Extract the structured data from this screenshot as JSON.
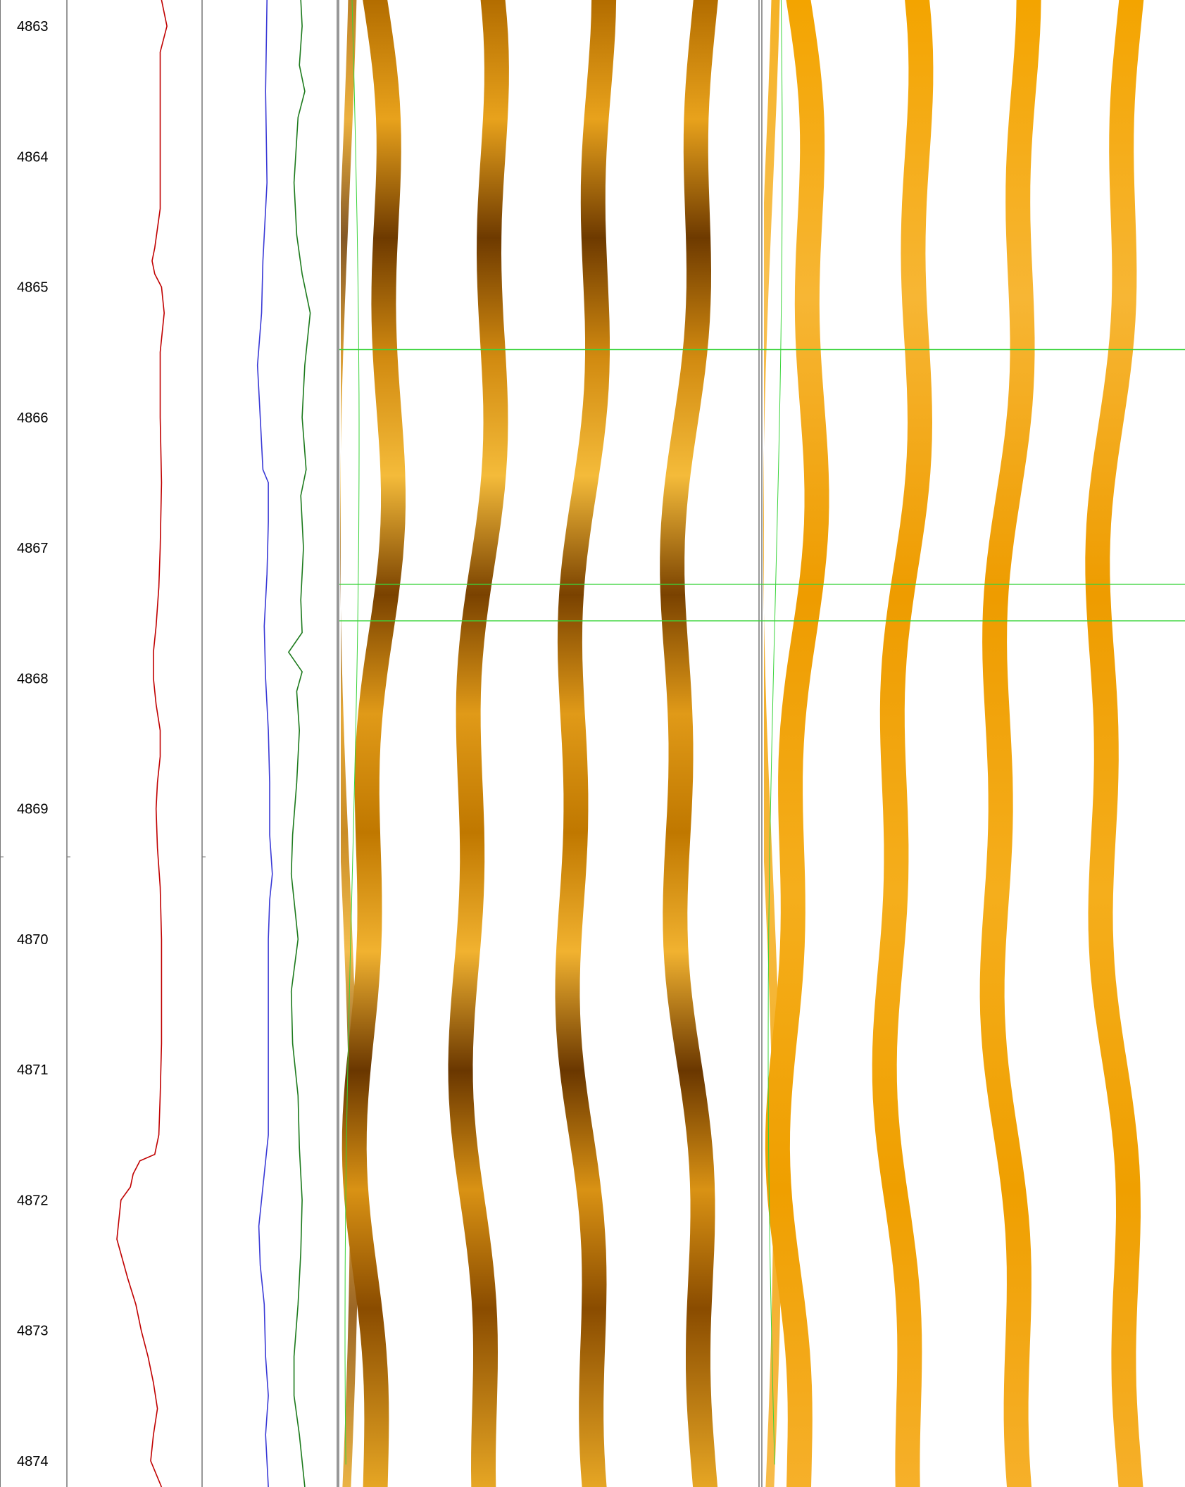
{
  "depth_track": {
    "labels": [
      "4863",
      "4864",
      "4865",
      "4866",
      "4867",
      "4868",
      "4869",
      "4870",
      "4871",
      "4872",
      "4873",
      "4874"
    ]
  },
  "colors": {
    "background": "#ffffff",
    "track_border": "#777777",
    "curve_red": "#c00000",
    "curve_blue": "#3a3ad6",
    "curve_green": "#1c7a1c",
    "marker_green": "#39d43a",
    "image_dark": "#5a2e00",
    "image_mid": "#c77d00",
    "image_light": "#f2b630",
    "image_static": "#f2a100"
  },
  "chart_data": {
    "type": "line",
    "title": "",
    "xlabel": "",
    "ylabel": "",
    "depth_range": [
      4862.8,
      4874.2
    ],
    "depth_ticks": [
      4863,
      4864,
      4865,
      4866,
      4867,
      4868,
      4869,
      4870,
      4871,
      4872,
      4873,
      4874
    ],
    "grid": false,
    "legend": "none",
    "tracks": [
      {
        "kind": "curve",
        "series": [
          {
            "color": "#c00000",
            "depth": [
              4862.8,
              4863.0,
              4863.2,
              4863.6,
              4864.0,
              4864.4,
              4864.7,
              4864.8,
              4864.9,
              4865.0,
              4865.2,
              4865.5,
              4866.0,
              4866.5,
              4867.0,
              4867.3,
              4867.6,
              4867.8,
              4868.0,
              4868.2,
              4868.4,
              4868.6,
              4868.8,
              4869.0,
              4869.3,
              4869.6,
              4870.0,
              4870.4,
              4870.8,
              4871.2,
              4871.5,
              4871.65,
              4871.7,
              4871.8,
              4871.9,
              4872.0,
              4872.3,
              4872.6,
              4872.8,
              4873.0,
              4873.2,
              4873.4,
              4873.6,
              4873.8,
              4874.0,
              4874.2
            ],
            "value": [
              0.7,
              0.74,
              0.69,
              0.69,
              0.69,
              0.69,
              0.65,
              0.63,
              0.65,
              0.7,
              0.72,
              0.69,
              0.69,
              0.7,
              0.69,
              0.68,
              0.66,
              0.64,
              0.64,
              0.66,
              0.69,
              0.69,
              0.67,
              0.66,
              0.67,
              0.69,
              0.7,
              0.7,
              0.7,
              0.69,
              0.68,
              0.65,
              0.54,
              0.49,
              0.47,
              0.4,
              0.37,
              0.45,
              0.51,
              0.55,
              0.6,
              0.64,
              0.67,
              0.64,
              0.62,
              0.7
            ]
          }
        ]
      },
      {
        "kind": "curve",
        "series": [
          {
            "color": "#3a3ad6",
            "depth": [
              4862.8,
              4863.5,
              4864.2,
              4864.8,
              4865.2,
              4865.6,
              4866.0,
              4866.4,
              4866.5,
              4866.8,
              4867.2,
              4867.6,
              4868.0,
              4868.4,
              4868.8,
              4869.2,
              4869.5,
              4869.7,
              4870.0,
              4870.5,
              4871.0,
              4871.5,
              4871.8,
              4872.2,
              4872.5,
              4872.8,
              4873.2,
              4873.5,
              4873.8,
              4874.2
            ],
            "value": [
              0.48,
              0.47,
              0.48,
              0.45,
              0.44,
              0.41,
              0.43,
              0.45,
              0.49,
              0.49,
              0.48,
              0.46,
              0.47,
              0.49,
              0.5,
              0.5,
              0.52,
              0.5,
              0.49,
              0.49,
              0.49,
              0.49,
              0.46,
              0.42,
              0.43,
              0.46,
              0.47,
              0.49,
              0.47,
              0.49
            ]
          },
          {
            "color": "#1c7a1c",
            "depth": [
              4862.8,
              4863.0,
              4863.3,
              4863.5,
              4863.7,
              4864.2,
              4864.6,
              4864.9,
              4865.2,
              4865.6,
              4866.0,
              4866.4,
              4866.6,
              4867.0,
              4867.4,
              4867.65,
              4867.8,
              4867.95,
              4868.1,
              4868.4,
              4868.8,
              4869.2,
              4869.5,
              4869.8,
              4870.0,
              4870.4,
              4870.8,
              4871.2,
              4871.6,
              4872.0,
              4872.4,
              4872.8,
              4873.2,
              4873.5,
              4873.8,
              4874.2
            ],
            "value": [
              0.73,
              0.74,
              0.72,
              0.76,
              0.71,
              0.68,
              0.7,
              0.74,
              0.8,
              0.76,
              0.74,
              0.77,
              0.73,
              0.75,
              0.73,
              0.74,
              0.64,
              0.74,
              0.7,
              0.72,
              0.7,
              0.67,
              0.66,
              0.69,
              0.71,
              0.66,
              0.67,
              0.71,
              0.72,
              0.74,
              0.73,
              0.71,
              0.68,
              0.68,
              0.72,
              0.76
            ]
          }
        ]
      },
      {
        "kind": "image",
        "name": "dynamic",
        "marker_depths": [
          4865.48,
          4867.28,
          4867.56
        ]
      },
      {
        "kind": "image",
        "name": "static",
        "marker_depths": [
          4865.48,
          4867.28,
          4867.56
        ]
      }
    ]
  }
}
